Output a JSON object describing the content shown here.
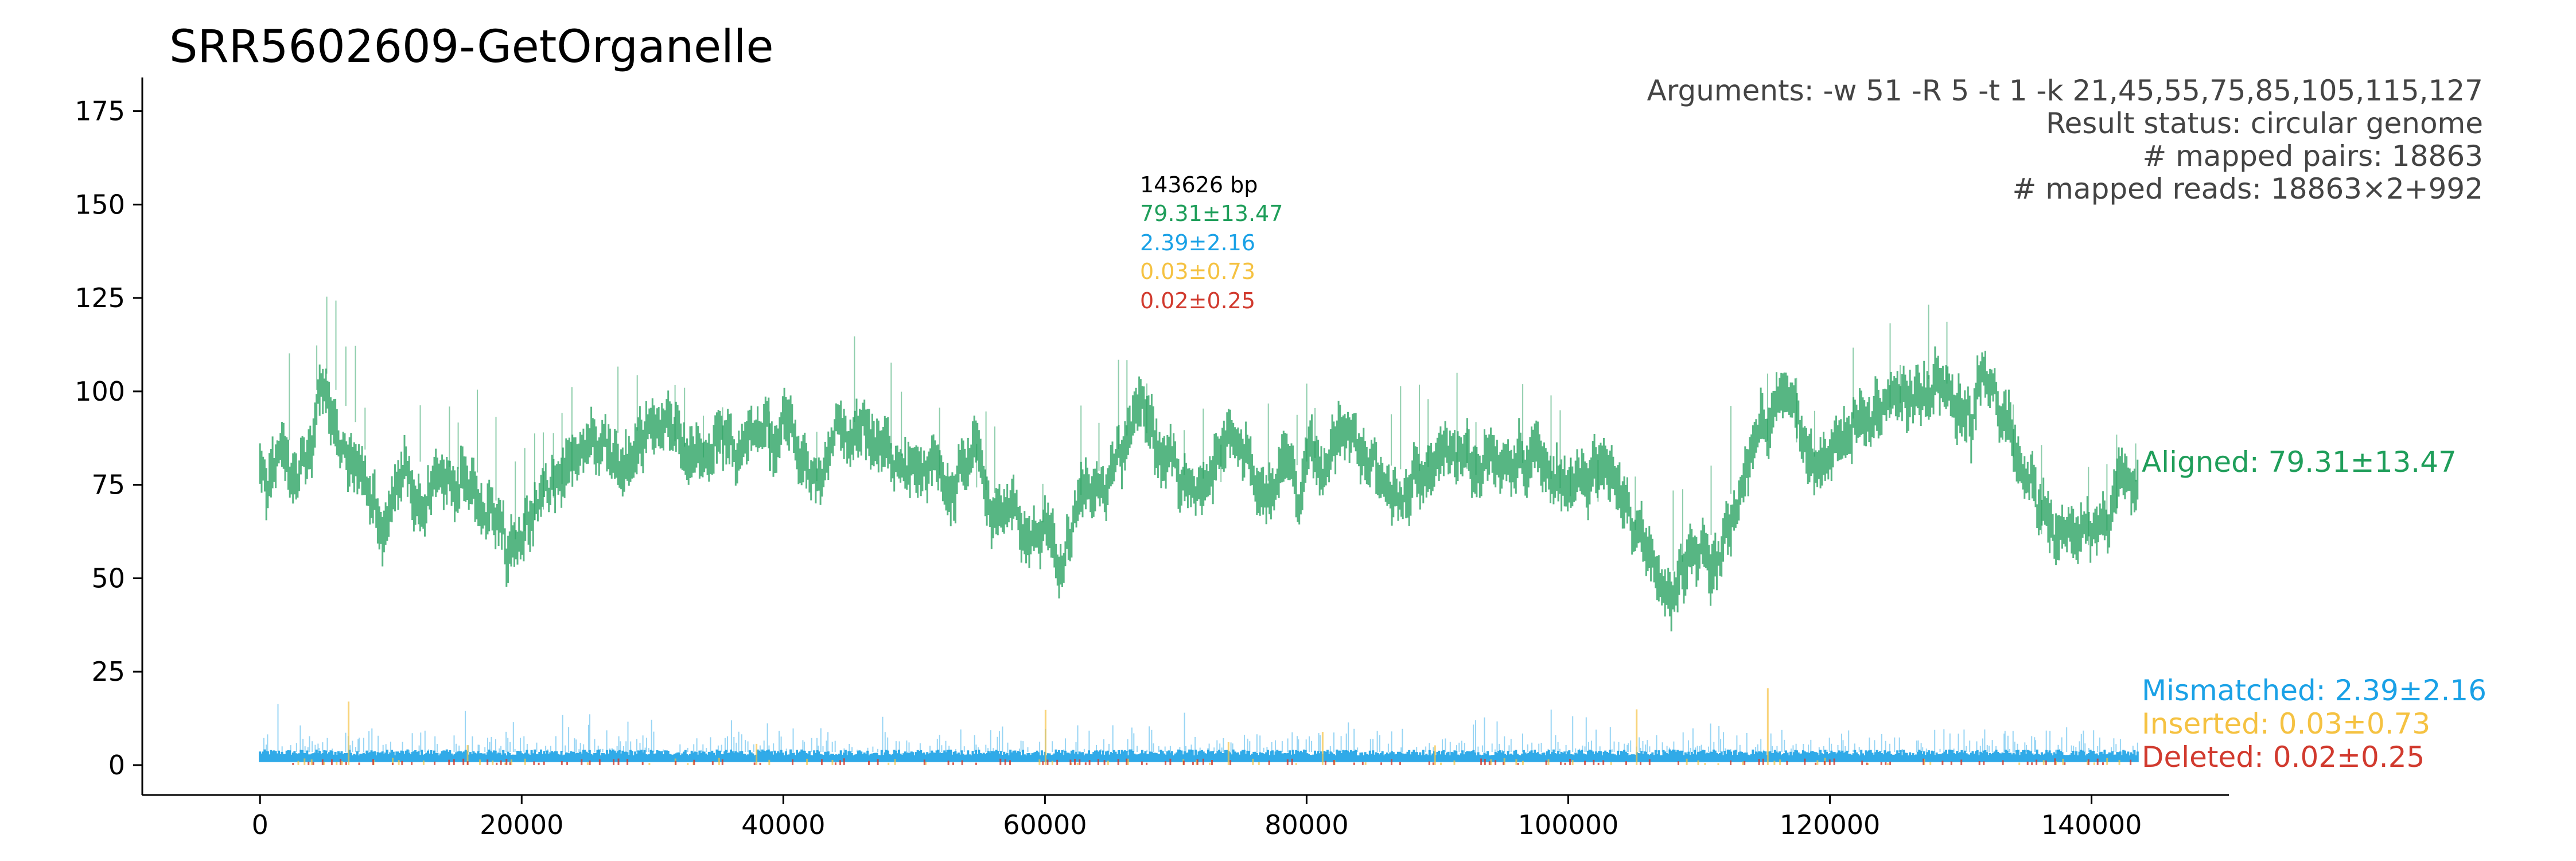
{
  "chart_data": {
    "type": "scatter",
    "title": "SRR5602609-GetOrganelle",
    "xlabel": "",
    "ylabel": "",
    "xlim": [
      -9000,
      150500
    ],
    "ylim": [
      -8,
      184
    ],
    "x_ticks": [
      0,
      20000,
      40000,
      60000,
      80000,
      100000,
      120000,
      140000
    ],
    "y_ticks": [
      0,
      25,
      50,
      75,
      100,
      125,
      150,
      175
    ],
    "genome_length": 143626,
    "info_lines": [
      "Arguments: -w 51 -R 5 -t 1 -k 21,45,55,75,85,105,115,127",
      "Result status: circular genome",
      "# mapped pairs: 18863",
      "# mapped reads: 18863×2+992"
    ],
    "mid_lines": [
      {
        "text": "143626 bp",
        "color": "#000000"
      },
      {
        "text": "79.31±13.47",
        "color": "#1f9e5a"
      },
      {
        "text": "2.39±2.16",
        "color": "#1aa1e6"
      },
      {
        "text": "0.03±0.73",
        "color": "#f5c242"
      },
      {
        "text": "0.02±0.25",
        "color": "#d13a2e"
      }
    ],
    "series": [
      {
        "name": "Aligned",
        "label": "Aligned: 79.31±13.47",
        "mean": 79.31,
        "sd": 13.47,
        "color": "#1f9e5a",
        "profile_x": [
          0,
          2500,
          5000,
          7500,
          9000,
          11000,
          14000,
          17000,
          19500,
          22000,
          25000,
          28000,
          31000,
          34000,
          37000,
          40000,
          42000,
          44000,
          47000,
          50000,
          53000,
          56000,
          58500,
          61000,
          63000,
          65000,
          67000,
          70000,
          73000,
          76000,
          79000,
          82000,
          85000,
          88000,
          91000,
          94000,
          97000,
          100000,
          103000,
          106000,
          108000,
          111000,
          113000,
          116000,
          119000,
          122000,
          125000,
          128000,
          131000,
          134000,
          136000,
          138500,
          141000,
          143626
        ],
        "profile_y": [
          80,
          88,
          105,
          90,
          70,
          82,
          80,
          78,
          60,
          70,
          85,
          90,
          88,
          82,
          85,
          75,
          70,
          95,
          88,
          80,
          76,
          73,
          70,
          60,
          75,
          82,
          92,
          78,
          76,
          74,
          80,
          84,
          82,
          78,
          82,
          75,
          82,
          72,
          70,
          60,
          52,
          62,
          78,
          90,
          82,
          94,
          96,
          105,
          95,
          82,
          62,
          56,
          62,
          78
        ]
      },
      {
        "name": "Mismatched",
        "label": "Mismatched: 2.39±2.16",
        "mean": 2.39,
        "sd": 2.16,
        "color": "#1aa1e6"
      },
      {
        "name": "Inserted",
        "label": "Inserted: 0.03±0.73",
        "mean": 0.03,
        "sd": 0.73,
        "color": "#f5c242"
      },
      {
        "name": "Deleted",
        "label": "Deleted: 0.02±0.25",
        "mean": 0.02,
        "sd": 0.25,
        "color": "#d13a2e"
      }
    ],
    "grid": false,
    "legend": "right"
  }
}
